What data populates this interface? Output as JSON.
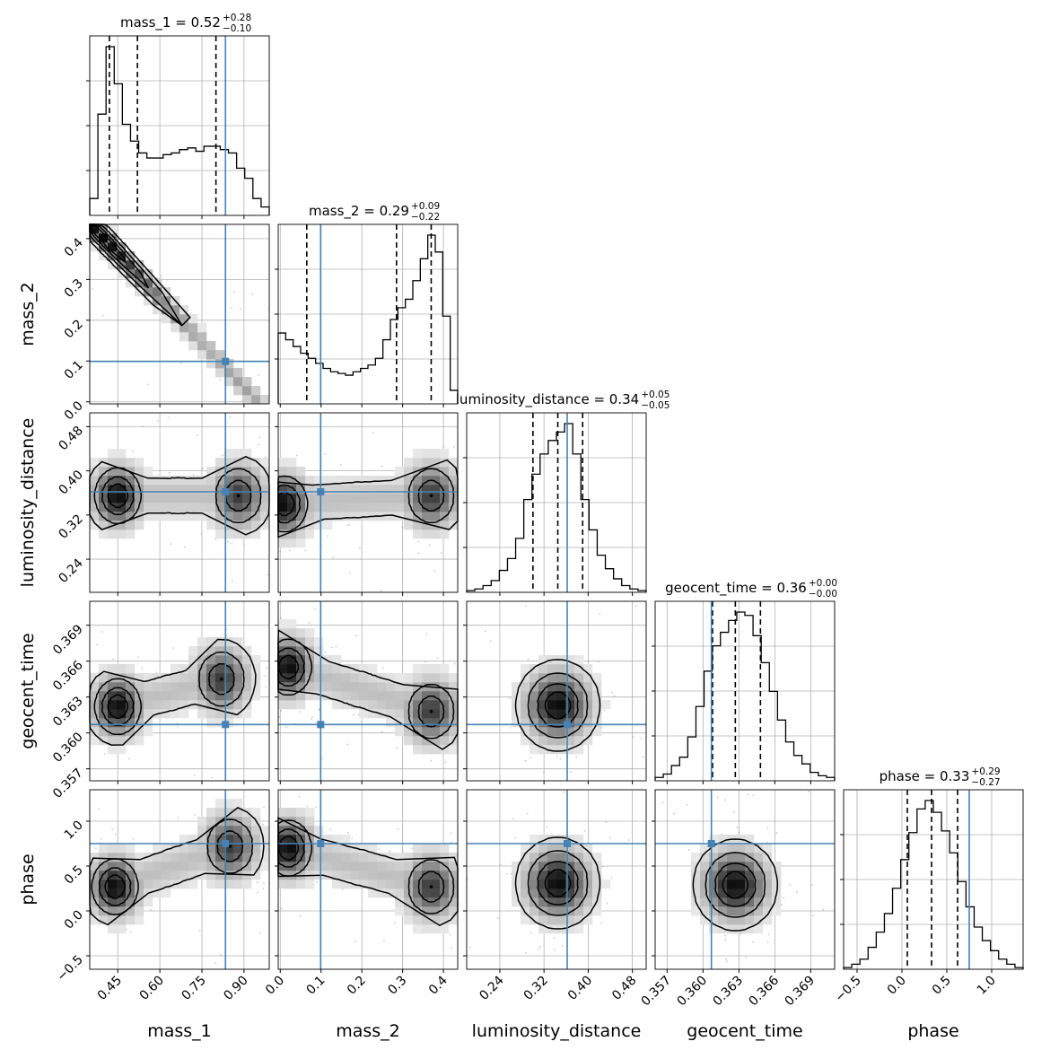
{
  "chart_data": {
    "type": "corner",
    "parameters": [
      {
        "name": "mass_1",
        "xlabel": "mass_1",
        "ylabel": "",
        "title": {
          "base": "mass_1 = 0.52",
          "sup": "+0.28",
          "sub": "−0.10"
        },
        "range": [
          0.35,
          0.99
        ],
        "ticks": [
          0.45,
          0.6,
          0.75,
          0.9
        ],
        "tick_labels": [
          "0.45",
          "0.60",
          "0.75",
          "0.90"
        ],
        "truth": 0.834,
        "quantiles": [
          0.42,
          0.52,
          0.8
        ],
        "hist": [
          0.1,
          0.6,
          1.0,
          0.78,
          0.54,
          0.44,
          0.37,
          0.34,
          0.34,
          0.36,
          0.37,
          0.39,
          0.4,
          0.38,
          0.41,
          0.41,
          0.39,
          0.37,
          0.28,
          0.22,
          0.1,
          0.05
        ]
      },
      {
        "name": "mass_2",
        "xlabel": "mass_2",
        "ylabel": "mass_2",
        "title": {
          "base": "mass_2 = 0.29",
          "sup": "+0.09",
          "sub": "−0.22"
        },
        "range": [
          -0.005,
          0.435
        ],
        "ticks": [
          0.0,
          0.1,
          0.2,
          0.3,
          0.4
        ],
        "tick_labels": [
          "0.0",
          "0.1",
          "0.2",
          "0.3",
          "0.4"
        ],
        "truth": 0.099,
        "quantiles": [
          0.065,
          0.285,
          0.37
        ],
        "hist": [
          0.42,
          0.38,
          0.34,
          0.3,
          0.27,
          0.24,
          0.21,
          0.19,
          0.18,
          0.17,
          0.19,
          0.21,
          0.23,
          0.27,
          0.38,
          0.5,
          0.57,
          0.62,
          0.73,
          0.86,
          1.0,
          0.9,
          0.52,
          0.08
        ]
      },
      {
        "name": "luminosity_distance",
        "xlabel": "luminosity_distance",
        "ylabel": "luminosity_distance",
        "title": {
          "base": "luminosity_distance = 0.34",
          "sup": "+0.05",
          "sub": "−0.05"
        },
        "range": [
          0.18,
          0.505
        ],
        "ticks": [
          0.24,
          0.32,
          0.4,
          0.48
        ],
        "tick_labels": [
          "0.24",
          "0.32",
          "0.40",
          "0.48"
        ],
        "truth": 0.362,
        "quantiles": [
          0.3,
          0.345,
          0.39
        ],
        "hist": [
          0.01,
          0.02,
          0.04,
          0.07,
          0.13,
          0.2,
          0.32,
          0.55,
          0.7,
          0.82,
          0.9,
          0.95,
          1.0,
          0.82,
          0.55,
          0.37,
          0.22,
          0.14,
          0.08,
          0.04,
          0.02,
          0.01
        ]
      },
      {
        "name": "geocent_time",
        "xlabel": "geocent_time",
        "ylabel": "geocent_time",
        "title": {
          "base": "geocent_time = 0.36",
          "sup": "+0.00",
          "sub": "−0.00"
        },
        "range": [
          0.356,
          0.371
        ],
        "ticks": [
          0.357,
          0.36,
          0.363,
          0.366,
          0.369
        ],
        "tick_labels": [
          "0.357",
          "0.360",
          "0.363",
          "0.366",
          "0.369"
        ],
        "truth": 0.3607,
        "quantiles": [
          0.3608,
          0.3627,
          0.3648
        ],
        "hist": [
          0.02,
          0.04,
          0.09,
          0.14,
          0.26,
          0.44,
          0.65,
          0.8,
          0.88,
          0.95,
          1.0,
          0.98,
          0.86,
          0.7,
          0.53,
          0.36,
          0.23,
          0.15,
          0.1,
          0.05,
          0.03,
          0.02
        ]
      },
      {
        "name": "phase",
        "xlabel": "phase",
        "ylabel": "phase",
        "title": {
          "base": "phase = 0.33",
          "sup": "+0.29",
          "sub": "−0.27"
        },
        "range": [
          -0.65,
          1.35
        ],
        "ticks": [
          -0.5,
          0.0,
          0.5,
          1.0
        ],
        "tick_labels": [
          "−0.5",
          "0.0",
          "0.5",
          "1.0"
        ],
        "truth": 0.75,
        "quantiles": [
          0.06,
          0.33,
          0.62
        ],
        "hist": [
          0.01,
          0.03,
          0.06,
          0.13,
          0.22,
          0.33,
          0.48,
          0.65,
          0.81,
          0.95,
          1.0,
          0.93,
          0.82,
          0.69,
          0.52,
          0.37,
          0.25,
          0.17,
          0.11,
          0.06,
          0.03,
          0.01
        ]
      }
    ],
    "truth_color": "#4682b4",
    "density_pairs": [
      {
        "x": 0,
        "y": 1,
        "shape": "diagonal-band",
        "peak": [
          0.42,
          0.385
        ]
      },
      {
        "x": 0,
        "y": 2,
        "shape": "bimodal",
        "peaks": [
          [
            0.45,
            0.355
          ],
          [
            0.88,
            0.355
          ]
        ]
      },
      {
        "x": 0,
        "y": 3,
        "shape": "bimodal",
        "peaks": [
          [
            0.45,
            0.3622
          ],
          [
            0.82,
            0.3645
          ]
        ]
      },
      {
        "x": 0,
        "y": 4,
        "shape": "bimodal",
        "peaks": [
          [
            0.44,
            0.27
          ],
          [
            0.85,
            0.72
          ]
        ]
      },
      {
        "x": 1,
        "y": 2,
        "shape": "bimodal",
        "peaks": [
          [
            0.01,
            0.34
          ],
          [
            0.37,
            0.355
          ]
        ]
      },
      {
        "x": 1,
        "y": 3,
        "shape": "bimodal",
        "peaks": [
          [
            0.02,
            0.3655
          ],
          [
            0.37,
            0.3618
          ]
        ]
      },
      {
        "x": 1,
        "y": 4,
        "shape": "bimodal",
        "peaks": [
          [
            0.02,
            0.7
          ],
          [
            0.37,
            0.27
          ]
        ]
      },
      {
        "x": 2,
        "y": 3,
        "shape": "blob",
        "peak": [
          0.345,
          0.3623
        ]
      },
      {
        "x": 2,
        "y": 4,
        "shape": "blob",
        "peak": [
          0.345,
          0.31
        ]
      },
      {
        "x": 3,
        "y": 4,
        "shape": "blob",
        "peak": [
          0.3627,
          0.29
        ]
      }
    ]
  }
}
